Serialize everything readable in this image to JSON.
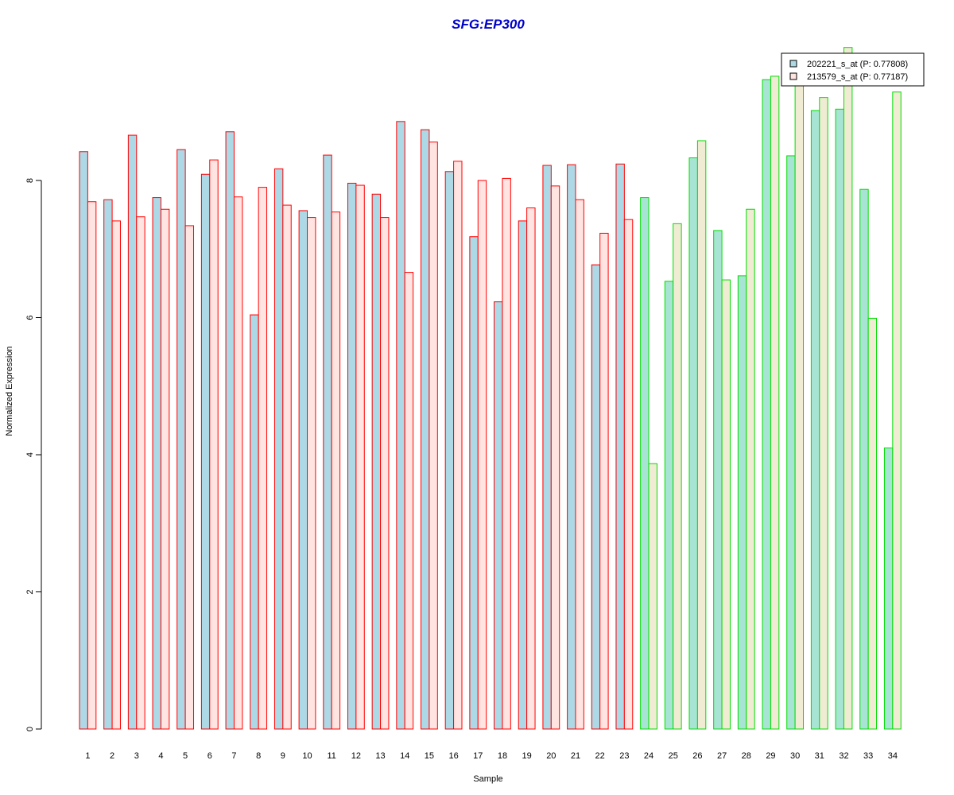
{
  "chart_data": {
    "type": "bar",
    "title": "SFG:EP300",
    "xlabel": "Sample",
    "ylabel": "Normalized Expression",
    "ylim": [
      0,
      10
    ],
    "yticks": [
      "0",
      "2",
      "4",
      "6",
      "8"
    ],
    "categories": [
      "1",
      "2",
      "3",
      "4",
      "5",
      "6",
      "7",
      "8",
      "9",
      "10",
      "11",
      "12",
      "13",
      "14",
      "15",
      "16",
      "17",
      "18",
      "19",
      "20",
      "21",
      "22",
      "23",
      "24",
      "25",
      "26",
      "27",
      "28",
      "29",
      "30",
      "31",
      "32",
      "33",
      "34"
    ],
    "series": [
      {
        "name": "202221_s_at (P: 0.77808)",
        "values": [
          8.42,
          7.72,
          8.66,
          7.75,
          8.45,
          8.09,
          8.71,
          6.04,
          8.17,
          7.56,
          8.37,
          7.96,
          7.8,
          8.86,
          8.74,
          8.13,
          7.18,
          6.23,
          7.41,
          8.22,
          8.23,
          6.77,
          8.24,
          7.75,
          6.53,
          8.33,
          7.27,
          6.61,
          9.47,
          8.36,
          9.02,
          9.04,
          7.87,
          4.1
        ]
      },
      {
        "name": "213579_s_at (P: 0.77187)",
        "values": [
          7.69,
          7.41,
          7.47,
          7.58,
          7.34,
          8.3,
          7.76,
          7.9,
          7.64,
          7.46,
          7.54,
          7.93,
          7.46,
          6.66,
          8.56,
          8.28,
          8.0,
          8.03,
          7.6,
          7.92,
          7.72,
          7.23,
          7.43,
          3.87,
          7.37,
          8.58,
          6.55,
          7.58,
          9.52,
          9.53,
          9.21,
          9.94,
          5.99,
          9.29
        ]
      }
    ],
    "group_split_after": 23,
    "legend_position": "top-right",
    "colors": {
      "series1_fill": "#add8e6",
      "series2_fill": "#ffe4e1",
      "series1_fill_group2": "#a8e4d4",
      "series2_fill_group2": "#f0ecd4",
      "group1_border": "#ff0000",
      "group2_border": "#00dd00",
      "title": "#0000cc",
      "legend_swatch1": "#add8e6",
      "legend_swatch2": "#ffe4e1"
    }
  }
}
